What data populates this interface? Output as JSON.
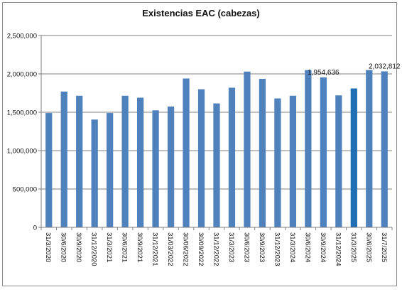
{
  "chart_data": {
    "type": "bar",
    "title": "Existencias EAC (cabezas)",
    "xlabel": "",
    "ylabel": "",
    "categories": [
      "31/3/2020",
      "30/6/2020",
      "30/9/2020",
      "31/12/2020",
      "31/3/2021",
      "30/6/2021",
      "30/9/2021",
      "31/12/2021",
      "31/03/2022",
      "30/06/2022",
      "30/09/2022",
      "31/12/2022",
      "31/3/2023",
      "30/6/2023",
      "30/9/2023",
      "31/12/2023",
      "31/3/2024",
      "30/6/2024",
      "30/9/2024",
      "31/12/2024",
      "31/3/2025",
      "30/6/2025",
      "31/7/2025"
    ],
    "values": [
      1490000,
      1770000,
      1715000,
      1405000,
      1490000,
      1715000,
      1690000,
      1525000,
      1575000,
      1940000,
      1800000,
      1615000,
      1820000,
      2030000,
      1935000,
      1680000,
      1715000,
      2050000,
      1954636,
      1720000,
      1810000,
      2050000,
      2032812
    ],
    "ylim": [
      0,
      2500000
    ],
    "yticks": [
      0,
      500000,
      1000000,
      1500000,
      2000000,
      2500000
    ],
    "ytick_labels": [
      "0",
      "500,000",
      "1,000,000",
      "1,500,000",
      "2,000,000",
      "2,500,000"
    ],
    "grid": true,
    "bar_color": "#4f81bd",
    "highlight_index": 20,
    "highlight_color": "#1f6fb4",
    "data_labels": [
      {
        "index": 18,
        "text": "1,954,636"
      },
      {
        "index": 22,
        "text": "2,032,812"
      }
    ]
  }
}
